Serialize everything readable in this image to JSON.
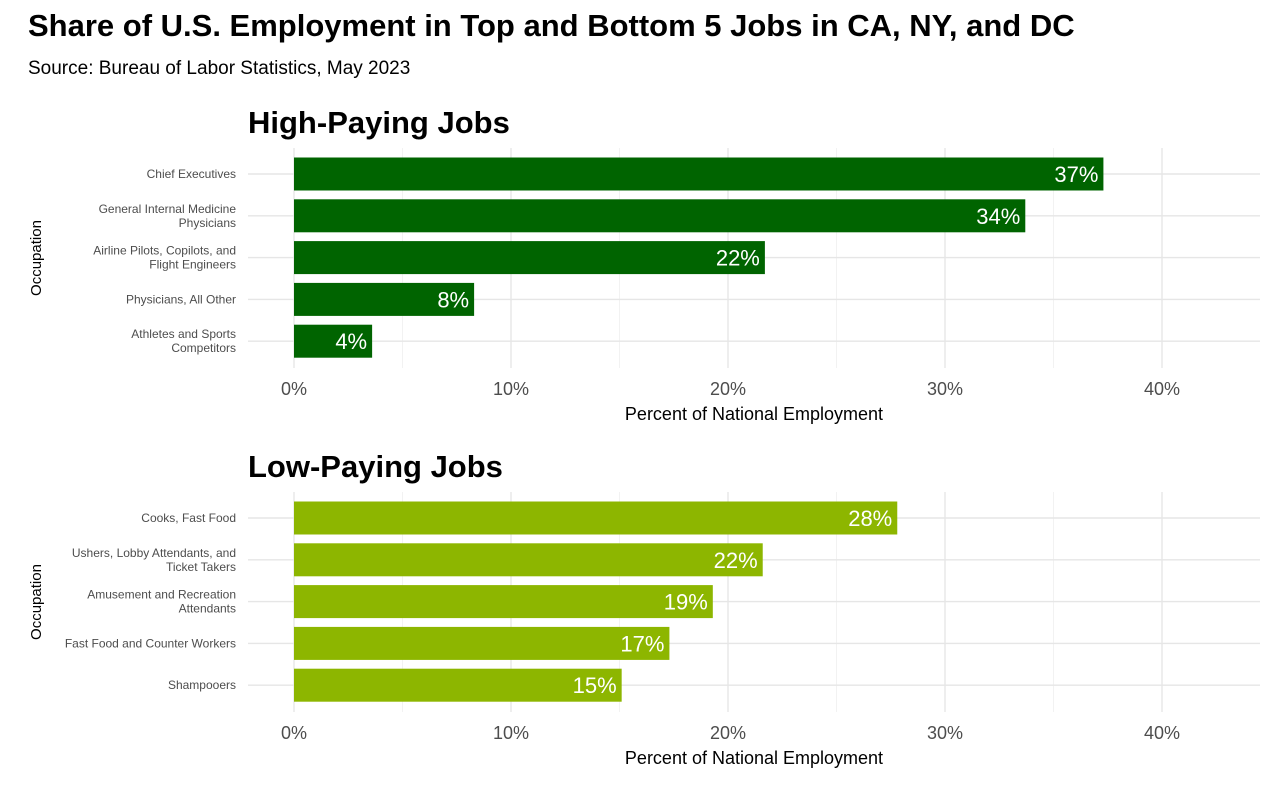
{
  "title": "Share of U.S. Employment in Top and Bottom 5 Jobs in CA, NY, and DC",
  "subtitle": "Source: Bureau of Labor Statistics, May 2023",
  "chart_data": [
    {
      "type": "bar",
      "orientation": "horizontal",
      "title": "High-Paying Jobs",
      "xlabel": "Percent of National Employment",
      "ylabel": "Occupation",
      "color": "#006400",
      "xlim": [
        0,
        44
      ],
      "xticks": [
        0,
        10,
        20,
        30,
        40
      ],
      "xtick_labels": [
        "0%",
        "10%",
        "20%",
        "30%",
        "40%"
      ],
      "grid": true,
      "categories": [
        [
          "Chief Executives"
        ],
        [
          "General Internal Medicine",
          "Physicians"
        ],
        [
          "Airline Pilots, Copilots, and",
          "Flight Engineers"
        ],
        [
          "Physicians, All Other"
        ],
        [
          "Athletes and Sports",
          "Competitors"
        ]
      ],
      "values": [
        37.3,
        33.7,
        21.7,
        8.3,
        3.6
      ],
      "data_labels": [
        "37%",
        "34%",
        "22%",
        "8%",
        "4%"
      ]
    },
    {
      "type": "bar",
      "orientation": "horizontal",
      "title": "Low-Paying Jobs",
      "xlabel": "Percent of National Employment",
      "ylabel": "Occupation",
      "color": "#8db600",
      "xlim": [
        0,
        44
      ],
      "xticks": [
        0,
        10,
        20,
        30,
        40
      ],
      "xtick_labels": [
        "0%",
        "10%",
        "20%",
        "30%",
        "40%"
      ],
      "grid": true,
      "categories": [
        [
          "Cooks, Fast Food"
        ],
        [
          "Ushers, Lobby Attendants, and",
          "Ticket Takers"
        ],
        [
          "Amusement and Recreation",
          "Attendants"
        ],
        [
          "Fast Food and Counter Workers"
        ],
        [
          "Shampooers"
        ]
      ],
      "values": [
        27.8,
        21.6,
        19.3,
        17.3,
        15.1
      ],
      "data_labels": [
        "28%",
        "22%",
        "19%",
        "17%",
        "15%"
      ]
    }
  ]
}
